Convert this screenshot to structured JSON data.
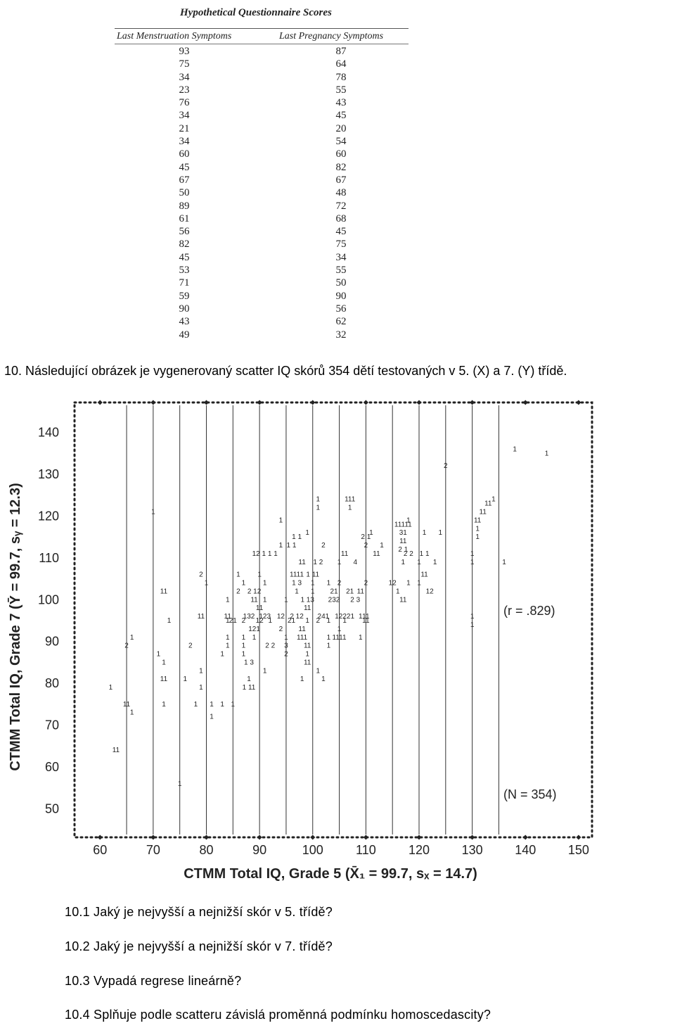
{
  "questionnaire": {
    "title": "Hypothetical Questionnaire Scores",
    "col1_header": "Last Menstruation Symptoms",
    "col2_header": "Last Pregnancy Symptoms",
    "col1": [
      "93",
      "75",
      "34",
      "23",
      "76",
      "34",
      "21",
      "34",
      "60",
      "45",
      "67",
      "50",
      "89",
      "61",
      "56",
      "82",
      "45",
      "53",
      "71",
      "59",
      "90",
      "43",
      "49"
    ],
    "col2": [
      "87",
      "64",
      "78",
      "55",
      "43",
      "45",
      "20",
      "54",
      "60",
      "82",
      "67",
      "48",
      "72",
      "68",
      "45",
      "75",
      "34",
      "55",
      "50",
      "90",
      "56",
      "62",
      "32"
    ]
  },
  "prompt": "10. Následující obrázek je vygenerovaný scatter IQ skórů 354 dětí testovaných v 5. (X) a 7. (Y) třídě.",
  "questions": [
    "10.1 Jaký je nejvyšší a nejnižší skór v 5. třídě?",
    "10.2 Jaký je nejvyšší a nejnižší skór v 7. třídě?",
    "10.3 Vypadá regrese lineárně?",
    "10.4 Splňuje podle scatteru závislá proměnná podmínku homoscedascity?"
  ],
  "chart_data": {
    "type": "scatter",
    "xlabel": "CTMM Total IQ, Grade 5 (X̄₁ = 99.7, sₓ = 14.7)",
    "ylabel": "CTMM Total IQ, Grade 7 (Ȳ = 99.7, sᵧ = 12.3)",
    "xlim": [
      56,
      152
    ],
    "ylim": [
      43,
      147
    ],
    "x_ticks": [
      60,
      70,
      80,
      90,
      100,
      110,
      120,
      130,
      140,
      150
    ],
    "y_ticks": [
      140,
      130,
      120,
      110,
      100,
      90,
      80,
      70,
      60,
      50
    ],
    "vertical_guides": [
      65,
      70,
      75,
      80,
      85,
      90,
      95,
      100,
      105,
      110,
      115,
      120,
      125,
      130,
      135
    ],
    "annotations": [
      "(r = .829)",
      "(N = 354)"
    ],
    "grid": false,
    "points": [
      [
        138,
        136,
        "1"
      ],
      [
        144,
        135,
        "1"
      ],
      [
        125,
        132,
        "2"
      ],
      [
        134,
        124,
        "1"
      ],
      [
        133,
        123,
        "11"
      ],
      [
        132,
        121,
        "11"
      ],
      [
        70,
        121,
        "1"
      ],
      [
        101,
        124,
        "1"
      ],
      [
        101,
        122,
        "1"
      ],
      [
        107,
        124,
        "111"
      ],
      [
        107,
        122,
        "1"
      ],
      [
        94,
        119,
        "1"
      ],
      [
        131,
        119,
        "11"
      ],
      [
        118,
        119,
        "1"
      ],
      [
        117,
        118,
        "11111"
      ],
      [
        117,
        116,
        "31"
      ],
      [
        121,
        116,
        "1"
      ],
      [
        124,
        116,
        "1"
      ],
      [
        131,
        117,
        "1"
      ],
      [
        131,
        115,
        "1"
      ],
      [
        99,
        116,
        "1"
      ],
      [
        97,
        115,
        "1 1"
      ],
      [
        111,
        116,
        "1"
      ],
      [
        110,
        115,
        "2 1"
      ],
      [
        117,
        114,
        "11"
      ],
      [
        94,
        113,
        "1"
      ],
      [
        96,
        113,
        "1 1"
      ],
      [
        102,
        113,
        "2"
      ],
      [
        110,
        113,
        "2"
      ],
      [
        113,
        113,
        "1"
      ],
      [
        117,
        112,
        "2 1"
      ],
      [
        91,
        111,
        "12 1 1 1"
      ],
      [
        106,
        111,
        "11"
      ],
      [
        112,
        111,
        "11"
      ],
      [
        118,
        111,
        "2 2"
      ],
      [
        121,
        111,
        "1 1"
      ],
      [
        130,
        111,
        "1"
      ],
      [
        98,
        109,
        "11"
      ],
      [
        101,
        109,
        "1 2"
      ],
      [
        105,
        109,
        "1"
      ],
      [
        108,
        109,
        "4"
      ],
      [
        117,
        109,
        "1"
      ],
      [
        120,
        109,
        "1"
      ],
      [
        123,
        109,
        "1"
      ],
      [
        130,
        109,
        "1"
      ],
      [
        136,
        109,
        "1"
      ],
      [
        79,
        106,
        "2"
      ],
      [
        86,
        106,
        "1"
      ],
      [
        90,
        106,
        "1"
      ],
      [
        97,
        106,
        "1111"
      ],
      [
        100,
        106,
        "1 11"
      ],
      [
        121,
        106,
        "11"
      ],
      [
        80,
        104,
        "1"
      ],
      [
        87,
        104,
        "1"
      ],
      [
        91,
        104,
        "1"
      ],
      [
        97,
        104,
        "1 3"
      ],
      [
        100,
        104,
        "1"
      ],
      [
        103,
        104,
        "1"
      ],
      [
        105,
        104,
        "2"
      ],
      [
        110,
        104,
        "2"
      ],
      [
        115,
        104,
        "12"
      ],
      [
        118,
        104,
        "1"
      ],
      [
        120,
        104,
        "1"
      ],
      [
        72,
        102,
        "11"
      ],
      [
        86,
        102,
        "2"
      ],
      [
        89,
        102,
        "2 12"
      ],
      [
        97,
        102,
        "1"
      ],
      [
        100,
        102,
        "1"
      ],
      [
        104,
        102,
        "21"
      ],
      [
        107,
        102,
        "21"
      ],
      [
        109,
        102,
        "11"
      ],
      [
        116,
        102,
        "1"
      ],
      [
        122,
        102,
        "12"
      ],
      [
        84,
        100,
        "1"
      ],
      [
        89,
        100,
        "11"
      ],
      [
        91,
        100,
        "1"
      ],
      [
        95,
        100,
        "1"
      ],
      [
        99,
        100,
        "1 13"
      ],
      [
        104,
        100,
        "232"
      ],
      [
        108,
        100,
        "2 3"
      ],
      [
        117,
        100,
        "11"
      ],
      [
        90,
        98,
        "11"
      ],
      [
        99,
        98,
        "11"
      ],
      [
        79,
        96,
        "11"
      ],
      [
        84,
        96,
        "11"
      ],
      [
        88,
        96,
        "132"
      ],
      [
        91,
        96,
        "123"
      ],
      [
        94,
        96,
        "12"
      ],
      [
        97,
        96,
        "2 12"
      ],
      [
        102,
        96,
        "241"
      ],
      [
        106,
        96,
        "12221"
      ],
      [
        109,
        96,
        "1"
      ],
      [
        110,
        96,
        "11"
      ],
      [
        130,
        96,
        "1"
      ],
      [
        73,
        95,
        "1"
      ],
      [
        84,
        95,
        "1"
      ],
      [
        85,
        95,
        "21"
      ],
      [
        87,
        95,
        "2"
      ],
      [
        90,
        95,
        "12"
      ],
      [
        92,
        95,
        "1"
      ],
      [
        96,
        95,
        "21"
      ],
      [
        99,
        95,
        "1"
      ],
      [
        101,
        95,
        "2"
      ],
      [
        103,
        95,
        "1"
      ],
      [
        106,
        95,
        "1"
      ],
      [
        110,
        95,
        "11"
      ],
      [
        130,
        94,
        "1"
      ],
      [
        89,
        93,
        "121"
      ],
      [
        94,
        93,
        "2"
      ],
      [
        98,
        93,
        "11"
      ],
      [
        105,
        93,
        "1"
      ],
      [
        66,
        91,
        "1"
      ],
      [
        84,
        91,
        "1"
      ],
      [
        87,
        91,
        "1"
      ],
      [
        89,
        91,
        "1"
      ],
      [
        95,
        91,
        "1"
      ],
      [
        98,
        91,
        "111"
      ],
      [
        103,
        91,
        "1"
      ],
      [
        105,
        91,
        "1111"
      ],
      [
        109,
        91,
        "1"
      ],
      [
        65,
        89,
        "2"
      ],
      [
        77,
        89,
        "2"
      ],
      [
        84,
        89,
        "1"
      ],
      [
        87,
        89,
        "1"
      ],
      [
        92,
        89,
        "2 2"
      ],
      [
        95,
        89,
        "3"
      ],
      [
        99,
        89,
        "11"
      ],
      [
        103,
        89,
        "1"
      ],
      [
        71,
        87,
        "1"
      ],
      [
        83,
        87,
        "1"
      ],
      [
        87,
        87,
        "1"
      ],
      [
        95,
        87,
        "2"
      ],
      [
        99,
        87,
        "1"
      ],
      [
        72,
        85,
        "1"
      ],
      [
        88,
        85,
        "1 3"
      ],
      [
        99,
        85,
        "11"
      ],
      [
        79,
        83,
        "1"
      ],
      [
        91,
        83,
        "1"
      ],
      [
        101,
        83,
        "1"
      ],
      [
        72,
        81,
        "11"
      ],
      [
        76,
        81,
        "1"
      ],
      [
        88,
        81,
        "1"
      ],
      [
        98,
        81,
        "1"
      ],
      [
        102,
        81,
        "1"
      ],
      [
        62,
        79,
        "1"
      ],
      [
        79,
        79,
        "1"
      ],
      [
        88,
        79,
        "1 11"
      ],
      [
        65,
        75,
        "11"
      ],
      [
        72,
        75,
        "1"
      ],
      [
        78,
        75,
        "1"
      ],
      [
        81,
        75,
        "1"
      ],
      [
        83,
        75,
        "1"
      ],
      [
        85,
        75,
        "1"
      ],
      [
        66,
        73,
        "1"
      ],
      [
        81,
        72,
        "1"
      ],
      [
        63,
        64,
        "11"
      ],
      [
        75,
        56,
        "1"
      ]
    ]
  }
}
